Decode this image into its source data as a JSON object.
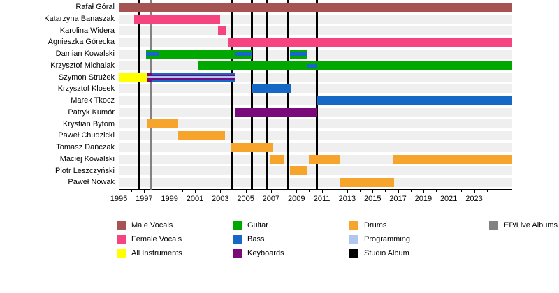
{
  "chart_data": {
    "type": "timeline",
    "title": "",
    "axis": {
      "start": 1995,
      "end": 2026,
      "minor_tick_step": 1,
      "minor_tick_last": 2025,
      "year_labels": [
        "1995",
        "1997",
        "1999",
        "2001",
        "2003",
        "2005",
        "2007",
        "2009",
        "2011",
        "2013",
        "2015",
        "2017",
        "2019",
        "2021",
        "2023"
      ],
      "label_step": 2
    },
    "colors": {
      "male_vocals": "#a55353",
      "female_vocals": "#f5447f",
      "all_instruments": "#ffff00",
      "guitar": "#00a800",
      "bass": "#1569c4",
      "keyboards": "#7a0a7a",
      "drums": "#f7a42d",
      "programming": "#aec6f0",
      "studio_album": "#000000",
      "ep_live": "#828282",
      "row_track": "#efefef"
    },
    "members": [
      {
        "name": "Rafał Góral",
        "segments": [
          {
            "role": "male_vocals",
            "start": 1995.0,
            "end": 2026.0,
            "layer": "full"
          }
        ]
      },
      {
        "name": "Katarzyna Banaszak",
        "segments": [
          {
            "role": "female_vocals",
            "start": 1996.2,
            "end": 2003.0,
            "layer": "full"
          }
        ]
      },
      {
        "name": "Karolina Widera",
        "segments": [
          {
            "role": "female_vocals",
            "start": 2002.8,
            "end": 2003.4,
            "layer": "full"
          }
        ]
      },
      {
        "name": "Agnieszka Górecka",
        "segments": [
          {
            "role": "female_vocals",
            "start": 2003.6,
            "end": 2026.0,
            "layer": "full"
          }
        ]
      },
      {
        "name": "Damian Kowalski",
        "segments": [
          {
            "role": "guitar",
            "start": 1997.15,
            "end": 2005.5,
            "layer": "full"
          },
          {
            "role": "bass",
            "start": 1997.15,
            "end": 1998.2,
            "layer": "stripe"
          },
          {
            "role": "bass",
            "start": 2004.2,
            "end": 2005.5,
            "layer": "stripe"
          },
          {
            "role": "guitar",
            "start": 2008.5,
            "end": 2009.8,
            "layer": "full"
          },
          {
            "role": "bass",
            "start": 2008.5,
            "end": 2009.8,
            "layer": "stripe"
          }
        ]
      },
      {
        "name": "Krzysztof Michalak",
        "segments": [
          {
            "role": "guitar",
            "start": 2001.3,
            "end": 2026.0,
            "layer": "full"
          },
          {
            "role": "bass",
            "start": 2009.85,
            "end": 2010.6,
            "layer": "stripe"
          }
        ]
      },
      {
        "name": "Szymon Strużek",
        "segments": [
          {
            "role": "all_instruments",
            "start": 1995.0,
            "end": 1997.2,
            "layer": "full"
          },
          {
            "role": "keyboards",
            "start": 1997.25,
            "end": 2004.2,
            "layer": "full"
          },
          {
            "role": "bass",
            "start": 1997.6,
            "end": 2004.2,
            "layer": "full"
          },
          {
            "role": "keyboards",
            "start": 1997.25,
            "end": 2004.2,
            "layer": "mid"
          },
          {
            "role": "programming",
            "start": 1997.25,
            "end": 2004.2,
            "layer": "thin"
          }
        ]
      },
      {
        "name": "Krzysztof Klosek",
        "segments": [
          {
            "role": "bass",
            "start": 2005.5,
            "end": 2008.6,
            "layer": "full"
          }
        ]
      },
      {
        "name": "Marek Tkocz",
        "segments": [
          {
            "role": "bass",
            "start": 2010.6,
            "end": 2026.0,
            "layer": "full"
          }
        ]
      },
      {
        "name": "Patryk Kumór",
        "segments": [
          {
            "role": "keyboards",
            "start": 2004.2,
            "end": 2010.6,
            "layer": "full"
          }
        ]
      },
      {
        "name": "Krystian Bytom",
        "segments": [
          {
            "role": "drums",
            "start": 1997.2,
            "end": 1999.7,
            "layer": "full"
          }
        ]
      },
      {
        "name": "Paweł Chudzicki",
        "segments": [
          {
            "role": "drums",
            "start": 1999.7,
            "end": 2003.35,
            "layer": "full"
          }
        ]
      },
      {
        "name": "Tomasz Dańczak",
        "segments": [
          {
            "role": "drums",
            "start": 2003.8,
            "end": 2007.1,
            "layer": "full"
          }
        ]
      },
      {
        "name": "Maciej Kowalski",
        "segments": [
          {
            "role": "drums",
            "start": 2006.9,
            "end": 2008.05,
            "layer": "full"
          },
          {
            "role": "drums",
            "start": 2010.0,
            "end": 2012.45,
            "layer": "full"
          },
          {
            "role": "drums",
            "start": 2016.6,
            "end": 2026.0,
            "layer": "full"
          }
        ]
      },
      {
        "name": "Piotr Leszczyński",
        "segments": [
          {
            "role": "drums",
            "start": 2008.5,
            "end": 2009.8,
            "layer": "full"
          }
        ]
      },
      {
        "name": "Paweł Nowak",
        "segments": [
          {
            "role": "drums",
            "start": 2012.45,
            "end": 2016.7,
            "layer": "full"
          }
        ]
      }
    ],
    "albums": {
      "studio": [
        1996.6,
        2003.9,
        2005.5,
        2006.65,
        2008.35,
        2010.6
      ],
      "ep_live": [
        1997.5
      ]
    },
    "legend_columns": [
      [
        {
          "label": "Male Vocals",
          "color_key": "male_vocals"
        },
        {
          "label": "Female Vocals",
          "color_key": "female_vocals"
        },
        {
          "label": "All Instruments",
          "color_key": "all_instruments"
        }
      ],
      [
        {
          "label": "Guitar",
          "color_key": "guitar"
        },
        {
          "label": "Bass",
          "color_key": "bass"
        },
        {
          "label": "Keyboards",
          "color_key": "keyboards"
        }
      ],
      [
        {
          "label": "Drums",
          "color_key": "drums"
        },
        {
          "label": "Programming",
          "color_key": "programming"
        },
        {
          "label": "Studio Album",
          "color_key": "studio_album"
        }
      ],
      [
        {
          "label": "EP/Live Albums",
          "color_key": "ep_live"
        }
      ]
    ]
  }
}
